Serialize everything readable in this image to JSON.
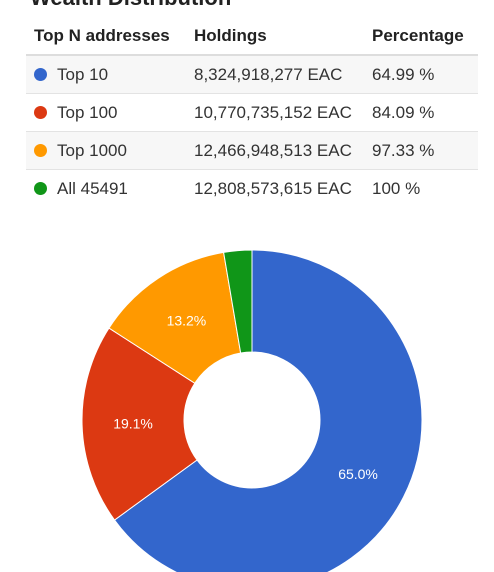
{
  "section": {
    "title": "Wealth Distribution"
  },
  "table": {
    "headers": [
      "Top N addresses",
      "Holdings",
      "Percentage"
    ],
    "rows": [
      {
        "label": "Top 10",
        "holdings": "8,324,918,277 EAC",
        "percentage": "64.99 %",
        "color": "#3366cc"
      },
      {
        "label": "Top 100",
        "holdings": "10,770,735,152 EAC",
        "percentage": "84.09 %",
        "color": "#dc3912"
      },
      {
        "label": "Top 1000",
        "holdings": "12,466,948,513 EAC",
        "percentage": "97.33 %",
        "color": "#ff9900"
      },
      {
        "label": "All 45491",
        "holdings": "12,808,573,615 EAC",
        "percentage": "100 %",
        "color": "#109618"
      }
    ]
  },
  "chart_data": {
    "type": "pie",
    "donut": true,
    "categories": [
      "Top 10",
      "Top 100",
      "Top 1000",
      "All 45491"
    ],
    "values": [
      64.99,
      19.1,
      13.24,
      2.67
    ],
    "labels": [
      "65.0%",
      "19.1%",
      "13.2%",
      ""
    ],
    "colors": [
      "#3366cc",
      "#dc3912",
      "#ff9900",
      "#109618"
    ],
    "legend": "none"
  }
}
